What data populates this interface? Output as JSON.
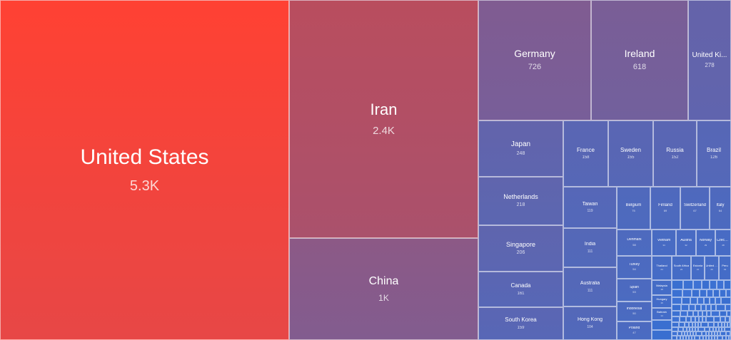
{
  "chart_data": {
    "type": "treemap",
    "title": "",
    "colors": {
      "high": "#ff4133",
      "mid": "#b84d5e",
      "low": "#3a6fd0"
    },
    "items": [
      {
        "name": "United States",
        "value": 5300,
        "label": "5.3K"
      },
      {
        "name": "Iran",
        "value": 2400,
        "label": "2.4K"
      },
      {
        "name": "China",
        "value": 1000,
        "label": "1K"
      },
      {
        "name": "Germany",
        "value": 726,
        "label": "726"
      },
      {
        "name": "Ireland",
        "value": 618,
        "label": "618"
      },
      {
        "name": "United Ki...",
        "value": 278,
        "label": "278"
      },
      {
        "name": "Japan",
        "value": 248,
        "label": "248"
      },
      {
        "name": "Netherlands",
        "value": 218,
        "label": "218"
      },
      {
        "name": "Singapore",
        "value": 206,
        "label": "206"
      },
      {
        "name": "Canada",
        "value": 161,
        "label": "161"
      },
      {
        "name": "South Korea",
        "value": 159,
        "label": "159"
      },
      {
        "name": "France",
        "value": 158,
        "label": "158"
      },
      {
        "name": "Sweden",
        "value": 155,
        "label": "155"
      },
      {
        "name": "Russia",
        "value": 152,
        "label": "152"
      },
      {
        "name": "Brazil",
        "value": 126,
        "label": "126"
      },
      {
        "name": "Taiwan",
        "value": 119,
        "label": "119"
      },
      {
        "name": "India",
        "value": 111,
        "label": "111"
      },
      {
        "name": "Australia",
        "value": 111,
        "label": "111"
      },
      {
        "name": "Hong Kong",
        "value": 104,
        "label": "104"
      },
      {
        "name": "Belgium",
        "value": 75,
        "label": "75"
      },
      {
        "name": "Finland",
        "value": 69,
        "label": "69"
      },
      {
        "name": "Switzerland",
        "value": 67,
        "label": "67"
      },
      {
        "name": "Italy",
        "value": 64,
        "label": "64"
      },
      {
        "name": "Denmark",
        "value": 58,
        "label": "58"
      },
      {
        "name": "Turkey",
        "value": 54,
        "label": "54"
      },
      {
        "name": "Spain",
        "value": 53,
        "label": "53"
      },
      {
        "name": "Indonesia",
        "value": 50,
        "label": "50"
      },
      {
        "name": "Poland",
        "value": 47,
        "label": "47"
      },
      {
        "name": "Vietnam",
        "value": 34,
        "label": "34"
      },
      {
        "name": "Austria",
        "value": 32,
        "label": "32"
      },
      {
        "name": "Norway",
        "value": 29,
        "label": "29"
      },
      {
        "name": "Czech Re...",
        "value": 28,
        "label": "28"
      },
      {
        "name": "Thailand",
        "value": 24,
        "label": "24"
      },
      {
        "name": "South Africa",
        "value": 22,
        "label": "22"
      },
      {
        "name": "Estonia",
        "value": 21,
        "label": "21"
      },
      {
        "name": "United A...",
        "value": 20,
        "label": "20"
      },
      {
        "name": "Peru",
        "value": 19,
        "label": "19"
      },
      {
        "name": "Malaysia",
        "value": 18,
        "label": "18"
      },
      {
        "name": "Hungary",
        "value": 16,
        "label": "16"
      },
      {
        "name": "Bahrain",
        "value": 14,
        "label": "14"
      }
    ]
  }
}
